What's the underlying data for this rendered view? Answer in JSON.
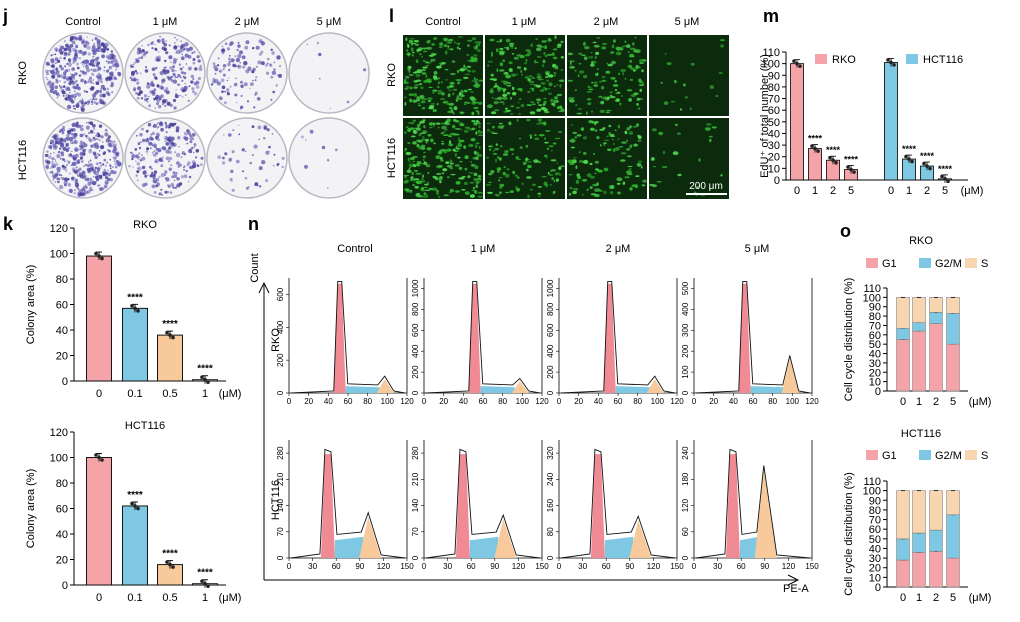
{
  "panels": {
    "j": {
      "letter": "j",
      "conditions": [
        "Control",
        "1 μM",
        "2 μM",
        "5 μM"
      ],
      "cell_lines": [
        "RKO",
        "HCT116"
      ],
      "density": [
        [
          0.95,
          0.55,
          0.28,
          0.02
        ],
        [
          0.9,
          0.55,
          0.12,
          0.02
        ]
      ]
    },
    "l": {
      "letter": "l",
      "conditions": [
        "Control",
        "1 μM",
        "2 μM",
        "5 μM"
      ],
      "cell_lines": [
        "RKO",
        "HCT116"
      ],
      "density": [
        [
          0.85,
          0.75,
          0.5,
          0.06
        ],
        [
          0.95,
          0.45,
          0.45,
          0.1
        ]
      ],
      "scale_bar": "200 μm"
    },
    "m": {
      "letter": "m",
      "legend": [
        "RKO",
        "HCT116"
      ],
      "unit": "(μM)",
      "sig": "****",
      "colors": {
        "RKO": "#f4a3a8",
        "HCT116": "#7ec8e3"
      }
    },
    "k": {
      "letter": "k",
      "unit": "(μM)",
      "sig": "****",
      "colors": [
        "#f4a3a8",
        "#7ec8e3",
        "#f8c99a",
        "#ffffff"
      ]
    },
    "n": {
      "letter": "n",
      "conditions": [
        "Control",
        "1 μM",
        "2 μM",
        "5 μM"
      ],
      "row_labels": [
        "RKO",
        "HCT116"
      ],
      "y_title": "Count",
      "x_title": "PE-A",
      "rko_yticks": [
        [
          "0",
          "200",
          "400",
          "600"
        ],
        [
          "0",
          "200",
          "400",
          "600",
          "800",
          "1000"
        ],
        [
          "0",
          "200",
          "400",
          "600",
          "800",
          "1000"
        ],
        [
          "0",
          "100",
          "200",
          "300",
          "400",
          "500"
        ]
      ],
      "hct_yticks": [
        [
          "0",
          "70",
          "140",
          "210",
          "280"
        ],
        [
          "0",
          "70",
          "140",
          "210",
          "280"
        ],
        [
          "0",
          "80",
          "160",
          "240",
          "320"
        ],
        [
          "0",
          "60",
          "120",
          "180",
          "240"
        ]
      ],
      "rko_xticks": [
        "0",
        "20",
        "40",
        "60",
        "80",
        "100",
        "120"
      ],
      "hct_xticks": [
        "0",
        "30",
        "60",
        "90",
        "120",
        "150"
      ],
      "colors": {
        "g1": "#f08a94",
        "s": "#7ec8e3",
        "g2m": "#f8c99a"
      }
    },
    "o": {
      "letter": "o",
      "legend": [
        "G1",
        "G2/M",
        "S"
      ],
      "colors": {
        "G1": "#f4a3a8",
        "G2/M": "#7ec8e3",
        "S": "#f8d5b0"
      },
      "unit": "(μM)"
    }
  },
  "chart_data": [
    {
      "type": "bar",
      "panel": "m",
      "title": "",
      "ylabel": "EdU⁺ of total number (%)",
      "categories": [
        "0",
        "1",
        "2",
        "5"
      ],
      "series": [
        {
          "name": "RKO",
          "values": [
            100,
            27,
            17,
            9
          ]
        },
        {
          "name": "HCT116",
          "values": [
            101,
            18,
            12,
            1
          ]
        }
      ],
      "annotations": [
        "",
        "****",
        "****",
        "****"
      ],
      "yticks": [
        0,
        10,
        20,
        30,
        40,
        50,
        60,
        70,
        80,
        90,
        100,
        110
      ],
      "ylim": [
        0,
        110
      ],
      "xunit": "(μM)"
    },
    {
      "type": "bar",
      "panel": "k-RKO",
      "title": "RKO",
      "ylabel": "Colony area (%)",
      "categories": [
        "0",
        "0.1",
        "0.5",
        "1"
      ],
      "values": [
        98,
        57,
        36,
        1
      ],
      "annotations": [
        "",
        "****",
        "****",
        "****"
      ],
      "yticks": [
        0,
        20,
        40,
        60,
        80,
        100,
        120
      ],
      "ylim": [
        0,
        120
      ],
      "xunit": "(μM)"
    },
    {
      "type": "bar",
      "panel": "k-HCT116",
      "title": "HCT116",
      "ylabel": "Colony area (%)",
      "categories": [
        "0",
        "0.1",
        "0.5",
        "1"
      ],
      "values": [
        100,
        62,
        16,
        1
      ],
      "annotations": [
        "",
        "****",
        "****",
        "****"
      ],
      "yticks": [
        0,
        20,
        40,
        60,
        80,
        100,
        120
      ],
      "ylim": [
        0,
        120
      ],
      "xunit": "(μM)"
    },
    {
      "type": "bar",
      "panel": "o-RKO",
      "stacked": true,
      "title": "RKO",
      "ylabel": "Cell cycle distribution (%)",
      "categories": [
        "0",
        "1",
        "2",
        "5"
      ],
      "series": [
        {
          "name": "G1",
          "values": [
            55,
            64,
            72,
            50
          ]
        },
        {
          "name": "G2/M",
          "values": [
            12,
            9,
            12,
            33
          ]
        },
        {
          "name": "S",
          "values": [
            33,
            27,
            16,
            17
          ]
        }
      ],
      "yticks": [
        0,
        10,
        20,
        30,
        40,
        50,
        60,
        70,
        80,
        90,
        100,
        110
      ],
      "ylim": [
        0,
        110
      ],
      "xunit": "(μM)"
    },
    {
      "type": "bar",
      "panel": "o-HCT116",
      "stacked": true,
      "title": "HCT116",
      "ylabel": "Cell cycle distribution (%)",
      "categories": [
        "0",
        "1",
        "2",
        "5"
      ],
      "series": [
        {
          "name": "G1",
          "values": [
            28,
            36,
            37,
            30
          ]
        },
        {
          "name": "G2/M",
          "values": [
            22,
            20,
            22,
            45
          ]
        },
        {
          "name": "S",
          "values": [
            50,
            44,
            41,
            25
          ]
        }
      ],
      "yticks": [
        0,
        10,
        20,
        30,
        40,
        50,
        60,
        70,
        80,
        90,
        100,
        110
      ],
      "ylim": [
        0,
        110
      ],
      "xunit": "(μM)"
    }
  ]
}
